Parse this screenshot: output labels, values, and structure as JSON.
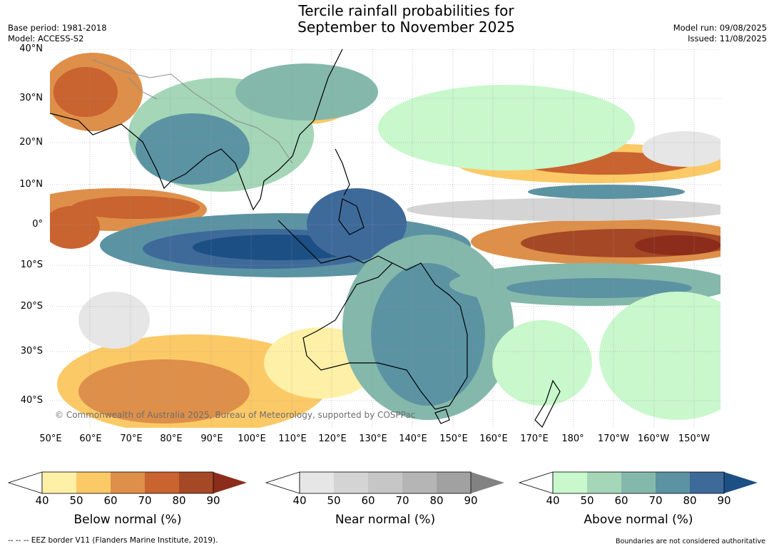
{
  "title_line1": "Tercile rainfall probabilities for",
  "title_line2": "September to November 2025",
  "base_period": "Base period: 1981-2018",
  "model": "Model: ACCESS-S2",
  "model_run": "Model run: 09/08/2025",
  "issued": "Issued: 11/08/2025",
  "lat_labels": [
    "40°N",
    "30°N",
    "20°N",
    "10°N",
    "0°",
    "10°S",
    "20°S",
    "30°S",
    "40°S"
  ],
  "lon_labels": [
    "50°E",
    "60°E",
    "70°E",
    "80°E",
    "90°E",
    "100°E",
    "110°E",
    "120°E",
    "130°E",
    "140°E",
    "150°E",
    "160°E",
    "170°E",
    "180°",
    "170°W",
    "160°W",
    "150°W"
  ],
  "copyright": "© Commonwealth of Australia 2025, Bureau of Meteorology, supported by COSPPac",
  "colorbars": [
    {
      "label": "Below normal (%)",
      "ticks": [
        "40",
        "50",
        "60",
        "70",
        "80",
        "90"
      ],
      "colors": [
        "#fff0a8",
        "#fcc967",
        "#de8f49",
        "#c9632f",
        "#a54826",
        "#8b2d1a"
      ]
    },
    {
      "label": "Near normal (%)",
      "ticks": [
        "40",
        "50",
        "60",
        "70",
        "80",
        "90"
      ],
      "colors": [
        "#e6e6e6",
        "#d4d4d4",
        "#c6c6c6",
        "#b5b5b5",
        "#a1a1a1",
        "#828282"
      ]
    },
    {
      "label": "Above normal (%)",
      "ticks": [
        "40",
        "50",
        "60",
        "70",
        "80",
        "90"
      ],
      "colors": [
        "#c8f8cc",
        "#a4d6b7",
        "#84b8ab",
        "#5b93a3",
        "#3e6a9a",
        "#1c4f84"
      ]
    }
  ],
  "footer_left": "--  --  -- EEZ border V11 (Flanders Marine Institute, 2019).",
  "footer_right": "Boundaries are not considered authoritative"
}
